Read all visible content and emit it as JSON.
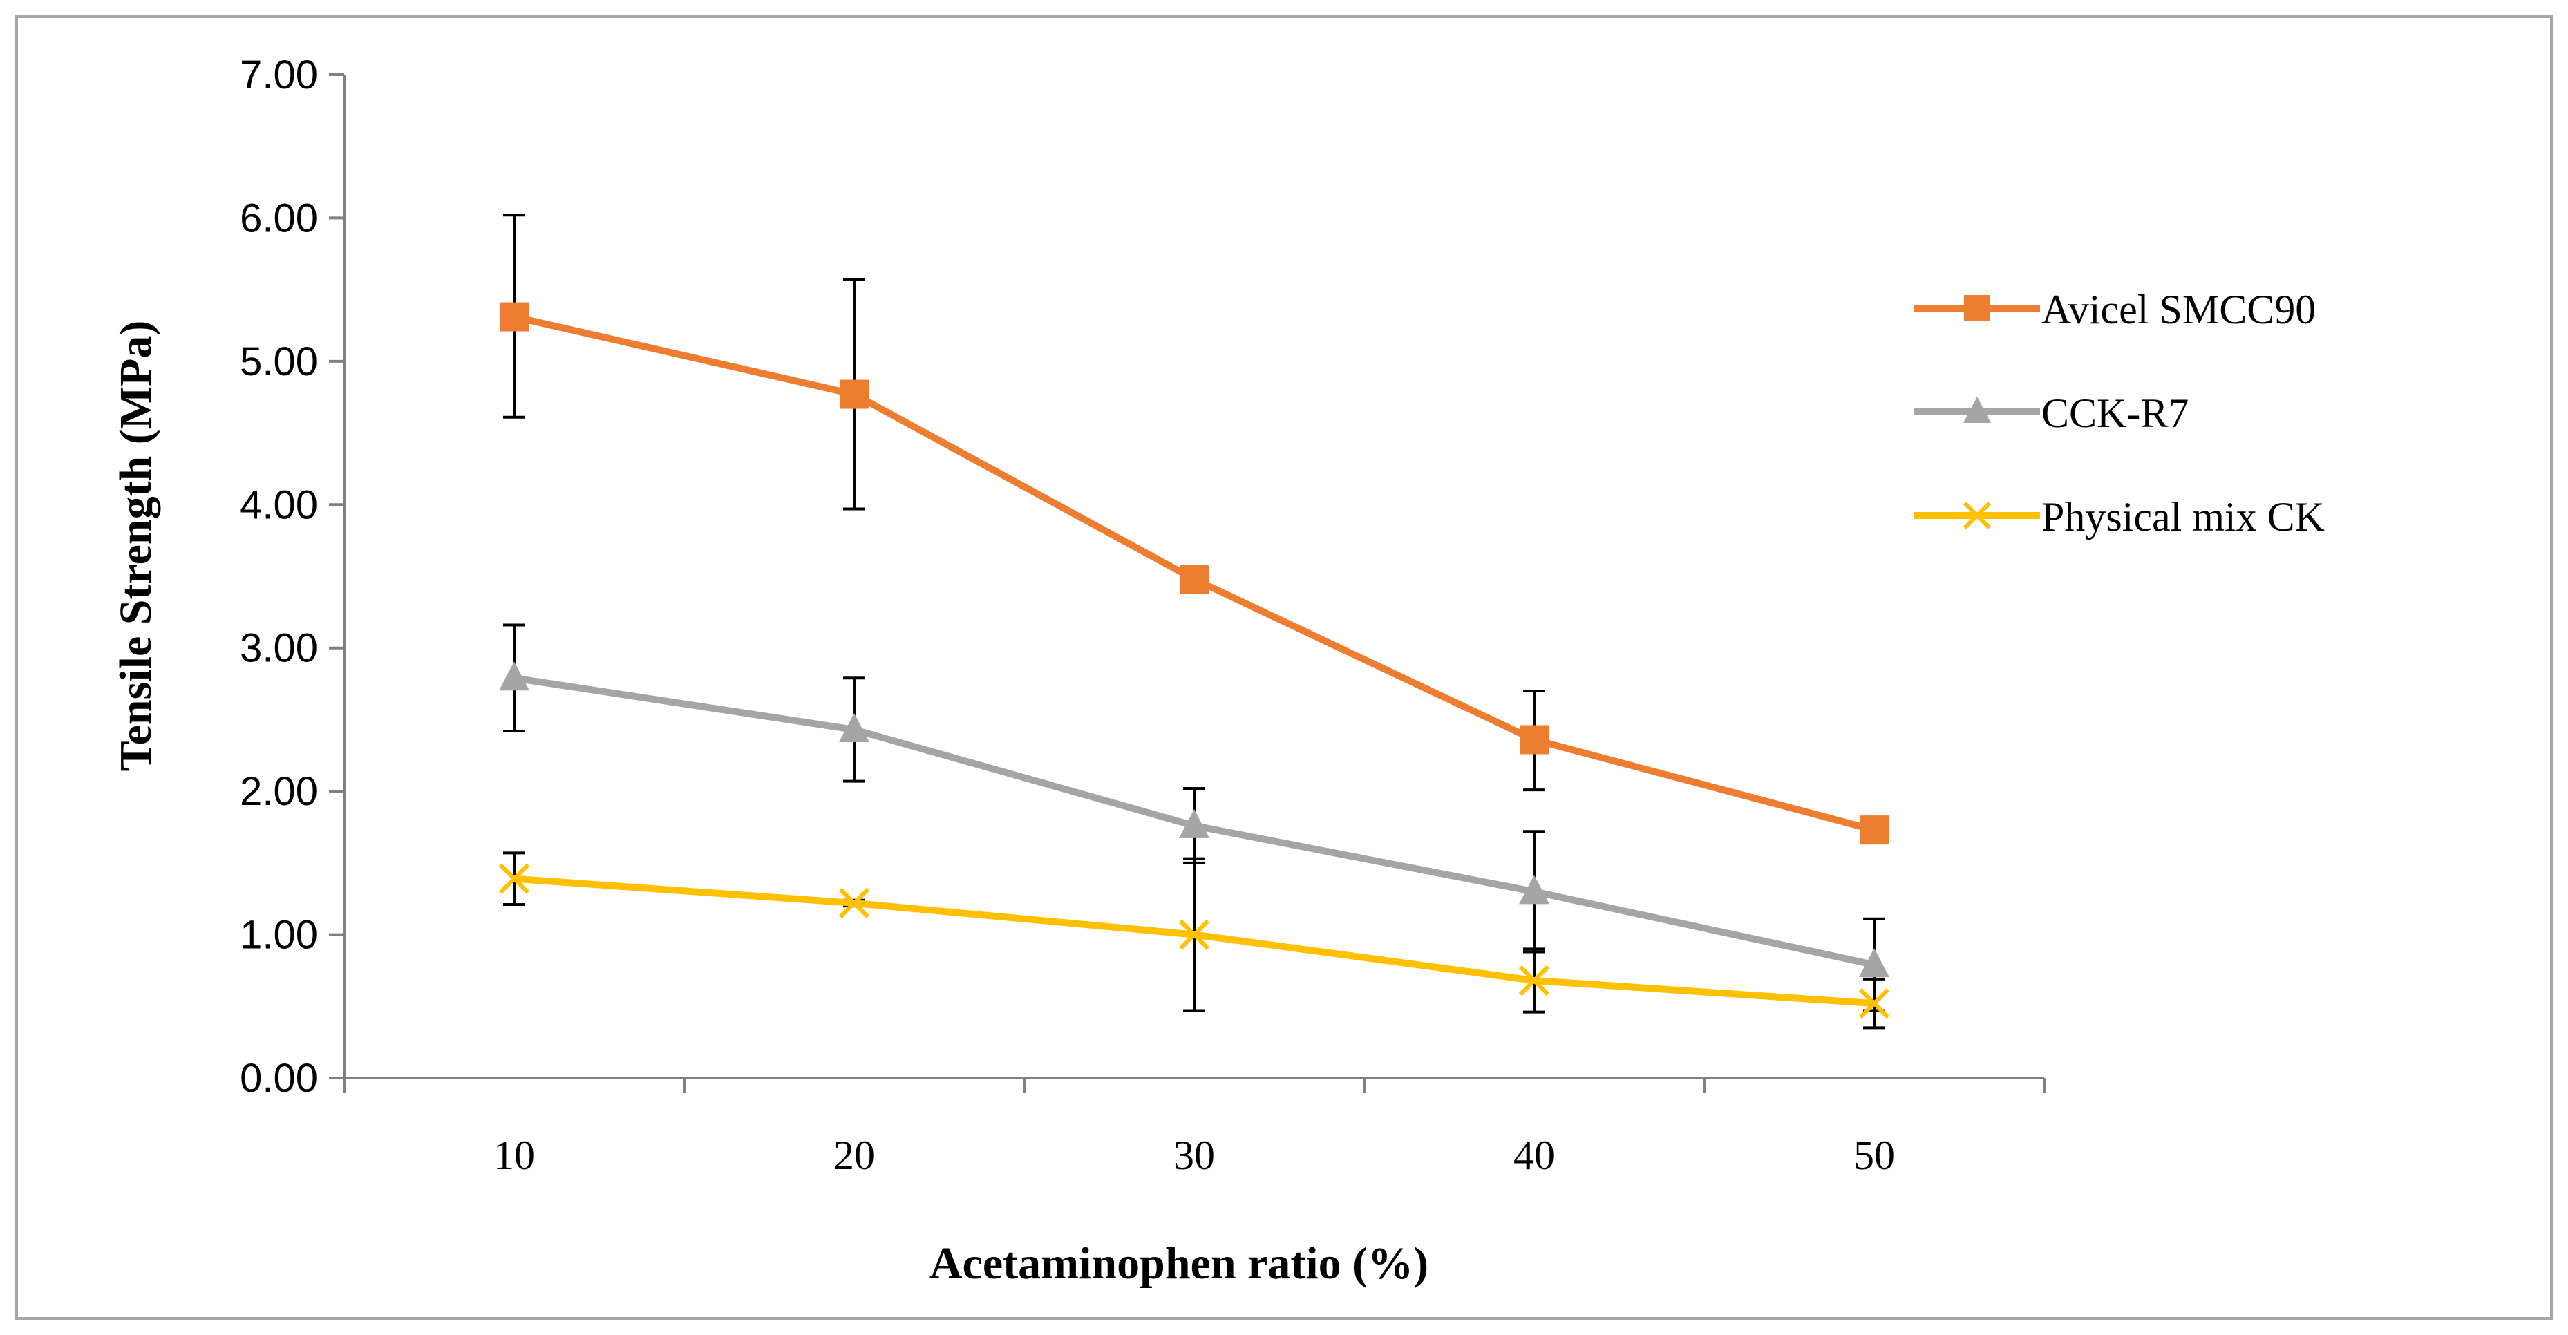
{
  "chart_data": {
    "type": "line",
    "title": "",
    "xlabel": "Acetaminophen ratio (%)",
    "ylabel": "Tensile Strength (MPa)",
    "categories": [
      "10",
      "20",
      "30",
      "40",
      "50"
    ],
    "ylim": [
      0,
      7
    ],
    "yticks": [
      "0.00",
      "1.00",
      "2.00",
      "3.00",
      "4.00",
      "5.00",
      "6.00",
      "7.00"
    ],
    "grid": false,
    "legend_position": "right",
    "series": [
      {
        "name": "Avicel SMCC90",
        "color": "#ed7d31",
        "marker": "square",
        "values": [
          5.31,
          4.77,
          3.48,
          2.36,
          1.73
        ],
        "err_low": [
          4.61,
          3.97,
          3.39,
          2.01,
          1.65
        ],
        "err_high": [
          6.02,
          5.57,
          3.57,
          2.7,
          1.79
        ]
      },
      {
        "name": "CCK-R7",
        "color": "#a5a5a5",
        "marker": "triangle",
        "values": [
          2.79,
          2.43,
          1.76,
          1.3,
          0.79
        ],
        "err_low": [
          2.42,
          2.07,
          1.5,
          0.88,
          0.47
        ],
        "err_high": [
          3.16,
          2.79,
          2.02,
          1.72,
          1.11
        ]
      },
      {
        "name": "Physical mix CK",
        "color": "#ffc000",
        "marker": "x",
        "values": [
          1.39,
          1.22,
          1.0,
          0.68,
          0.52
        ],
        "err_low": [
          1.21,
          1.2,
          0.47,
          0.46,
          0.35
        ],
        "err_high": [
          1.57,
          1.24,
          1.53,
          0.9,
          0.69
        ]
      }
    ]
  }
}
